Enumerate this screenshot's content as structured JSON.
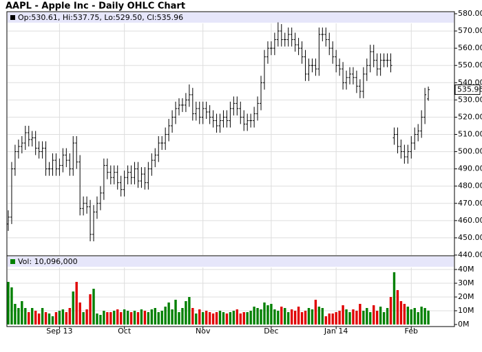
{
  "chart_data": {
    "type": "ohlc",
    "title": "AAPL - Apple Inc - Daily OHLC Chart",
    "info_text": "Op:530.61, Hi:537.75, Lo:529.50, Cl:535.96",
    "volume_text": "Vol: 10,096,000",
    "categories": [
      null,
      null,
      null,
      null,
      null,
      null,
      null,
      null,
      null,
      null,
      null,
      null,
      null,
      null,
      null,
      "Sep 13",
      null,
      null,
      null,
      null,
      null,
      null,
      null,
      null,
      null,
      null,
      null,
      null,
      null,
      null,
      null,
      null,
      null,
      null,
      "Oct",
      null,
      null,
      null,
      null,
      null,
      null,
      null,
      null,
      null,
      null,
      null,
      null,
      null,
      null,
      null,
      null,
      null,
      null,
      null,
      null,
      null,
      null,
      "Nov",
      null,
      null,
      null,
      null,
      null,
      null,
      null,
      null,
      null,
      null,
      null,
      null,
      null,
      null,
      null,
      null,
      null,
      null,
      null,
      "Dec",
      null,
      null,
      null,
      null,
      null,
      null,
      null,
      null,
      null,
      null,
      null,
      null,
      null,
      null,
      null,
      null,
      null,
      null,
      "Jan 14",
      null,
      null,
      null,
      null,
      null,
      null,
      null,
      null,
      null,
      null,
      null,
      null,
      null,
      null,
      null,
      null,
      null,
      null,
      null,
      null,
      null,
      "Feb",
      null,
      null,
      null,
      null,
      null
    ],
    "open": [
      458,
      462,
      490,
      500,
      503,
      505,
      511,
      507,
      508,
      502,
      500,
      502,
      490,
      490,
      495,
      490,
      492,
      498,
      495,
      490,
      505,
      494,
      467,
      470,
      468,
      452,
      465,
      470,
      476,
      492,
      488,
      485,
      488,
      482,
      478,
      485,
      488,
      485,
      490,
      483,
      487,
      482,
      490,
      495,
      498,
      505,
      505,
      510,
      515,
      520,
      525,
      527,
      527,
      530,
      533,
      522,
      525,
      520,
      525,
      523,
      520,
      518,
      515,
      518,
      520,
      518,
      525,
      528,
      525,
      520,
      516,
      518,
      518,
      522,
      528,
      540,
      555,
      560,
      560,
      565,
      570,
      565,
      565,
      568,
      565,
      562,
      560,
      555,
      545,
      550,
      550,
      548,
      568,
      568,
      565,
      560,
      555,
      550,
      548,
      540,
      543,
      545,
      543,
      538,
      535,
      545,
      550,
      558,
      553,
      548,
      553,
      553,
      553,
      508,
      510,
      503,
      500,
      497,
      500,
      505,
      510,
      512,
      520,
      530.61
    ],
    "high": [
      466,
      494,
      504,
      507,
      509,
      515,
      515,
      512,
      512,
      506,
      506,
      506,
      494,
      499,
      499,
      496,
      502,
      502,
      499,
      509,
      509,
      498,
      474,
      474,
      472,
      469,
      474,
      480,
      496,
      496,
      492,
      492,
      492,
      486,
      489,
      492,
      492,
      494,
      494,
      491,
      491,
      494,
      499,
      502,
      509,
      509,
      514,
      519,
      524,
      529,
      531,
      531,
      534,
      539,
      537,
      529,
      529,
      529,
      529,
      527,
      524,
      522,
      522,
      524,
      524,
      529,
      532,
      532,
      529,
      524,
      522,
      522,
      526,
      532,
      544,
      559,
      564,
      564,
      569,
      575,
      574,
      569,
      572,
      572,
      569,
      566,
      564,
      559,
      554,
      554,
      554,
      572,
      572,
      572,
      569,
      564,
      559,
      554,
      552,
      547,
      549,
      549,
      547,
      542,
      549,
      554,
      562,
      562,
      557,
      557,
      557,
      557,
      557,
      514,
      514,
      507,
      504,
      504,
      509,
      514,
      516,
      524,
      537,
      537.75
    ],
    "low": [
      454,
      458,
      486,
      496,
      499,
      501,
      503,
      503,
      498,
      496,
      496,
      486,
      486,
      486,
      486,
      486,
      488,
      491,
      486,
      486,
      490,
      463,
      463,
      464,
      448,
      448,
      461,
      466,
      472,
      484,
      481,
      481,
      478,
      474,
      474,
      481,
      481,
      481,
      479,
      479,
      478,
      478,
      486,
      491,
      494,
      501,
      501,
      506,
      511,
      516,
      521,
      523,
      523,
      526,
      518,
      518,
      516,
      516,
      519,
      516,
      514,
      511,
      511,
      514,
      514,
      514,
      521,
      521,
      516,
      512,
      512,
      514,
      514,
      518,
      524,
      536,
      551,
      556,
      556,
      561,
      561,
      561,
      561,
      561,
      558,
      556,
      551,
      541,
      541,
      546,
      544,
      544,
      564,
      561,
      556,
      551,
      546,
      544,
      536,
      536,
      539,
      539,
      534,
      531,
      531,
      541,
      546,
      549,
      544,
      544,
      549,
      549,
      546,
      504,
      499,
      496,
      493,
      493,
      496,
      501,
      506,
      508,
      516,
      529.5
    ],
    "close": [
      462,
      490,
      500,
      503,
      505,
      511,
      507,
      508,
      502,
      500,
      502,
      490,
      490,
      495,
      490,
      492,
      498,
      495,
      490,
      505,
      494,
      467,
      470,
      468,
      452,
      465,
      470,
      476,
      492,
      488,
      485,
      488,
      482,
      478,
      485,
      488,
      485,
      490,
      483,
      487,
      482,
      490,
      495,
      498,
      505,
      505,
      510,
      515,
      520,
      525,
      527,
      527,
      530,
      533,
      522,
      525,
      520,
      525,
      523,
      520,
      518,
      515,
      518,
      520,
      518,
      525,
      528,
      525,
      520,
      516,
      518,
      518,
      522,
      528,
      540,
      555,
      560,
      560,
      565,
      570,
      565,
      565,
      568,
      565,
      562,
      560,
      555,
      545,
      550,
      550,
      548,
      568,
      568,
      565,
      560,
      555,
      550,
      548,
      540,
      543,
      545,
      543,
      538,
      535,
      545,
      550,
      558,
      553,
      548,
      553,
      553,
      553,
      550,
      510,
      503,
      500,
      497,
      500,
      505,
      510,
      512,
      520,
      533,
      535.96
    ],
    "volume": [
      31,
      27,
      15,
      12,
      17,
      12,
      9,
      12,
      10,
      8,
      12,
      9,
      8,
      6,
      9,
      10,
      11,
      9,
      12,
      24,
      31,
      16,
      9,
      11,
      22,
      26,
      8,
      7,
      10,
      9,
      9,
      10,
      11,
      9,
      11,
      10,
      9,
      10,
      9,
      11,
      10,
      9,
      11,
      12,
      9,
      10,
      13,
      16,
      11,
      18,
      9,
      12,
      17,
      20,
      12,
      8,
      11,
      9,
      10,
      9,
      8,
      9,
      10,
      9,
      8,
      9,
      10,
      11,
      8,
      9,
      9,
      10,
      13,
      12,
      11,
      16,
      14,
      15,
      11,
      10,
      13,
      12,
      9,
      11,
      10,
      13,
      9,
      10,
      12,
      11,
      18,
      13,
      12,
      6,
      8,
      8,
      9,
      10,
      14,
      11,
      9,
      11,
      10,
      15,
      10,
      12,
      9,
      14,
      10,
      13,
      9,
      12,
      20,
      38,
      25,
      17,
      15,
      13,
      11,
      12,
      9,
      13,
      12,
      10.096
    ],
    "bar_color": "#000000",
    "up_color": "#008000",
    "down_color": "#e00000",
    "ylim": [
      440,
      580
    ],
    "yticks": [
      {
        "value": 440,
        "label": "440.00"
      },
      {
        "value": 450,
        "label": "450.00"
      },
      {
        "value": 460,
        "label": "460.00"
      },
      {
        "value": 470,
        "label": "470.00"
      },
      {
        "value": 480,
        "label": "480.00"
      },
      {
        "value": 490,
        "label": "490.00"
      },
      {
        "value": 500,
        "label": "500.00"
      },
      {
        "value": 510,
        "label": "510.00"
      },
      {
        "value": 520,
        "label": "520.00"
      },
      {
        "value": 530,
        "label": "530.00"
      },
      {
        "value": 540,
        "label": "540.00"
      },
      {
        "value": 550,
        "label": "550.00"
      },
      {
        "value": 560,
        "label": "560.00"
      },
      {
        "value": 570,
        "label": "570.00"
      },
      {
        "value": 580,
        "label": "580.00"
      }
    ],
    "volume_ylim": [
      0,
      40
    ],
    "volume_yticks": [
      {
        "value": 0,
        "label": "0M"
      },
      {
        "value": 10,
        "label": "10M"
      },
      {
        "value": 20,
        "label": "20M"
      },
      {
        "value": 30,
        "label": "30M"
      },
      {
        "value": 40,
        "label": "40M"
      }
    ],
    "grid": true
  }
}
